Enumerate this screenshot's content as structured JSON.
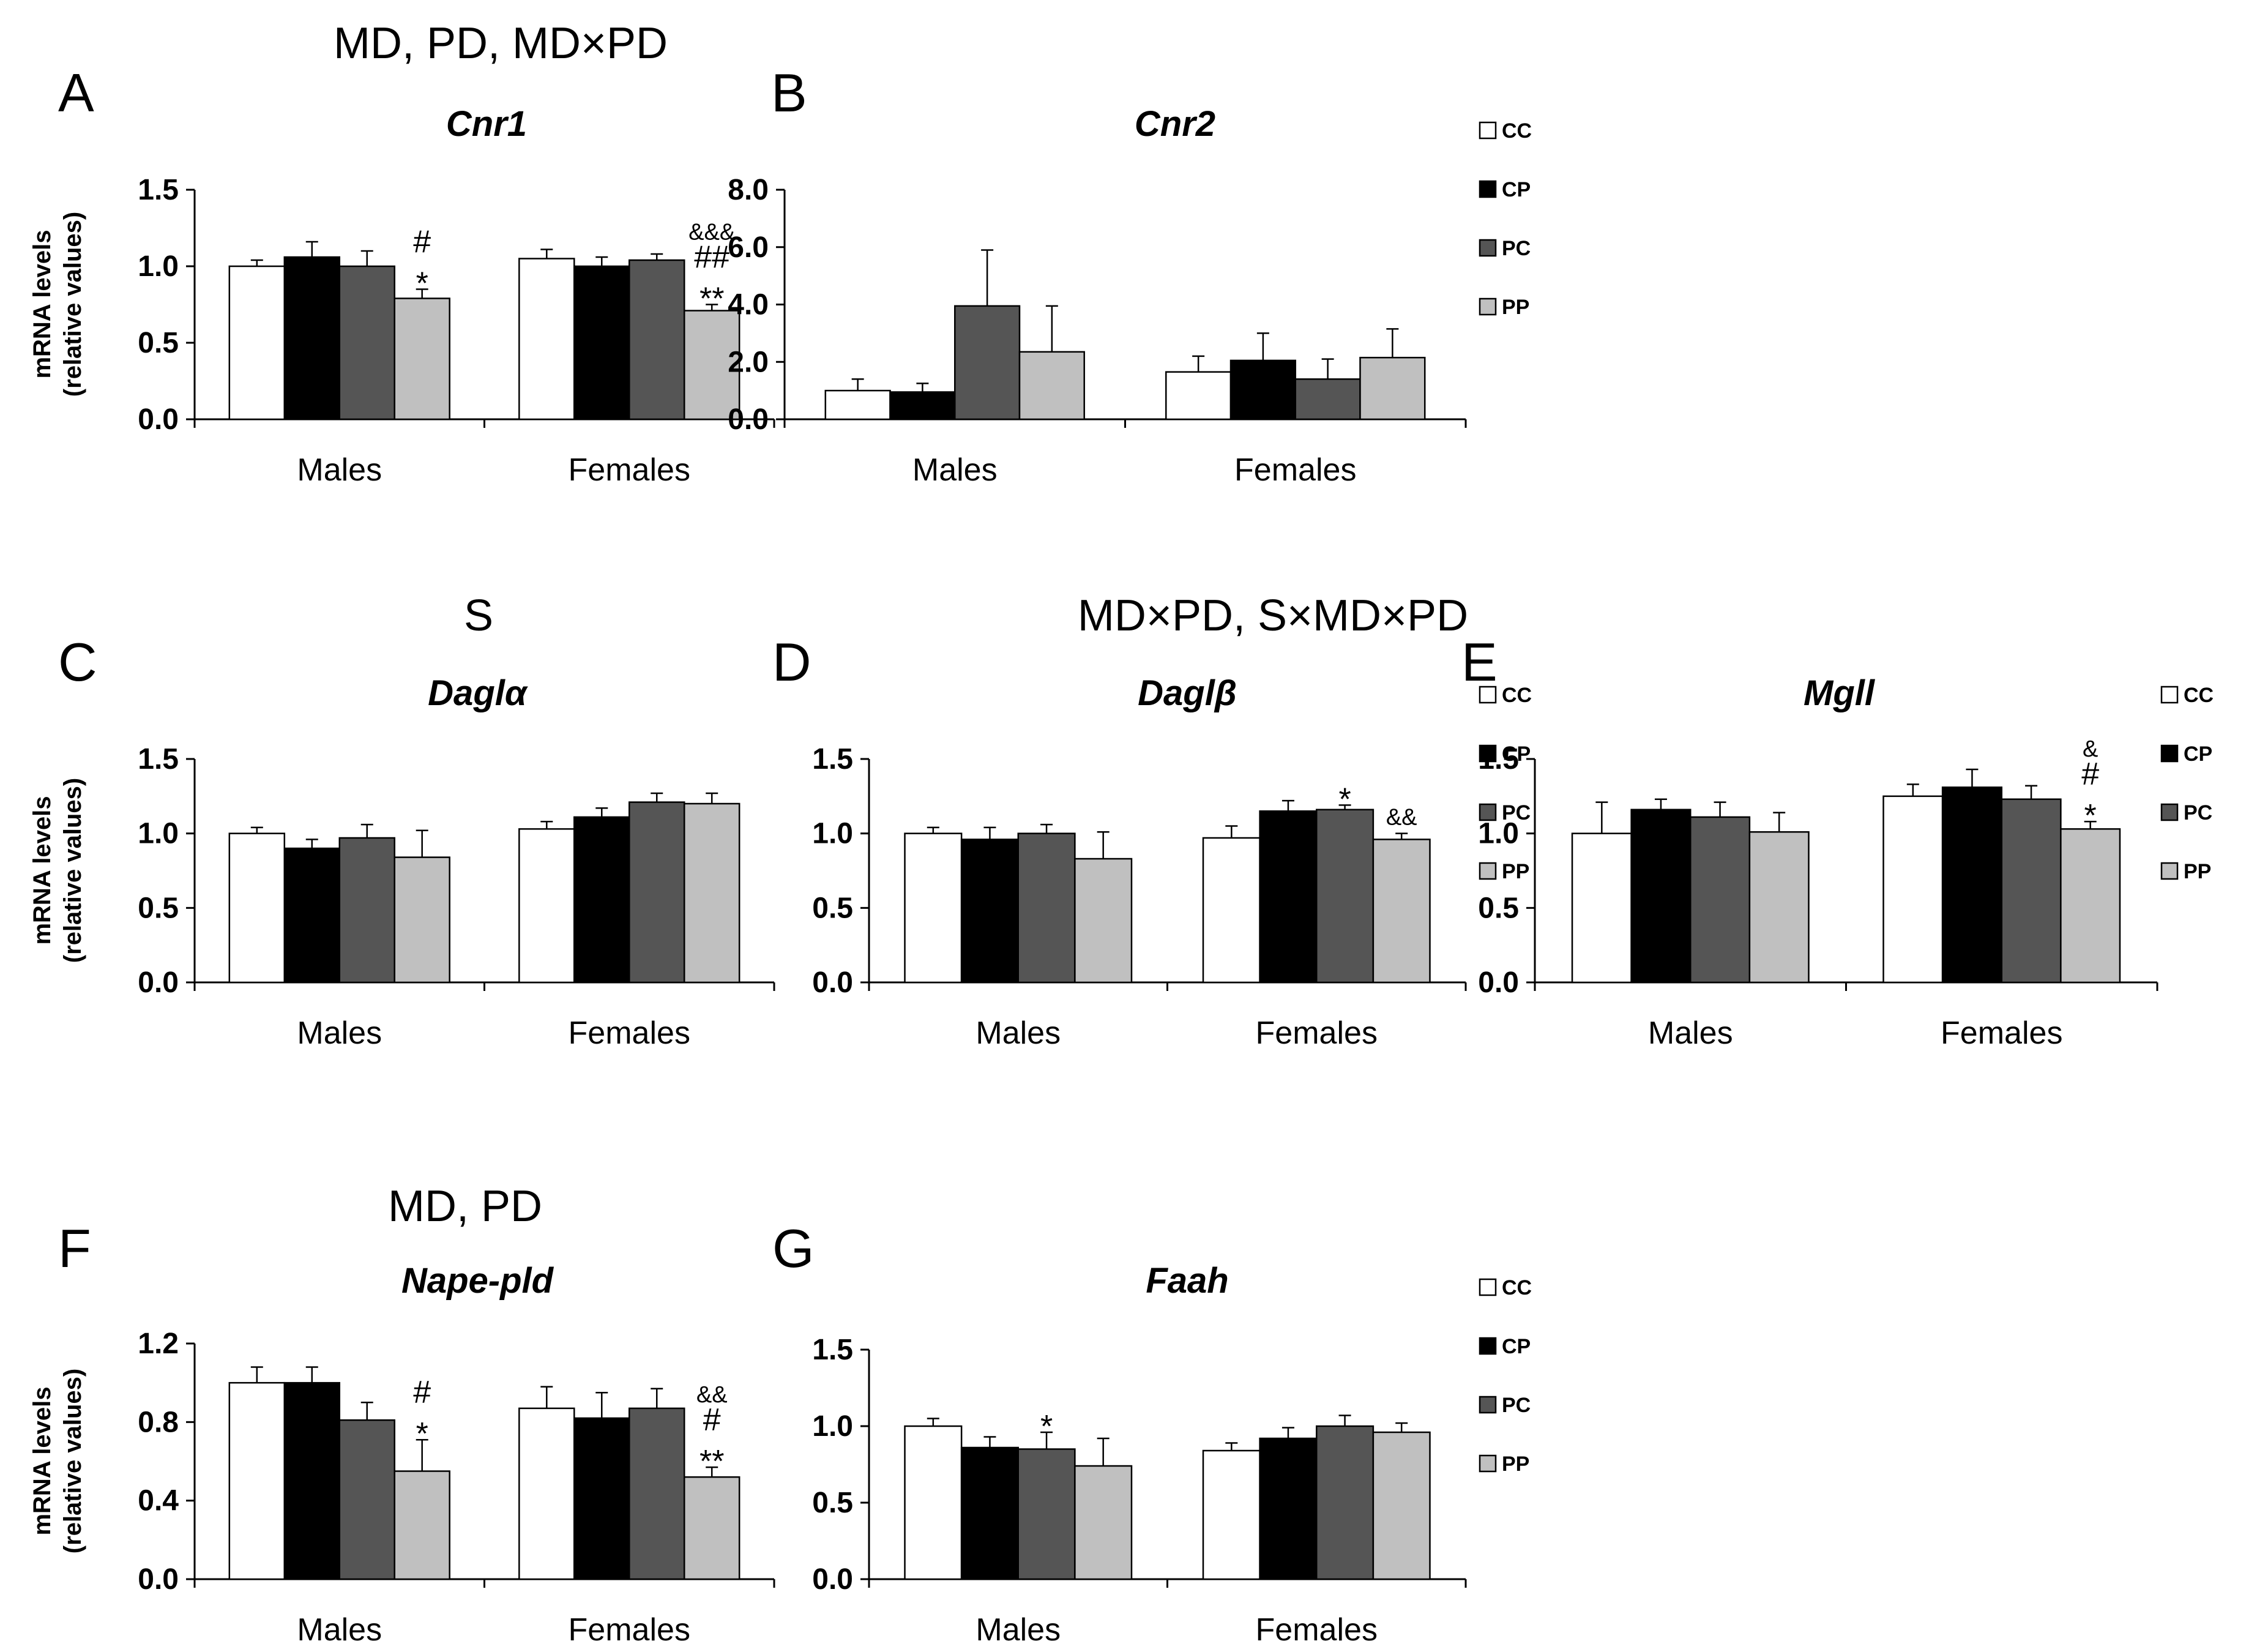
{
  "y_axis_label_line1": "mRNA levels",
  "y_axis_label_line2": "(relative values)",
  "legend": [
    {
      "label": "CC",
      "color": "#ffffff"
    },
    {
      "label": "CP",
      "color": "#000000"
    },
    {
      "label": "PC",
      "color": "#555555"
    },
    {
      "label": "PP",
      "color": "#c0c0c0"
    }
  ],
  "chart_data": [
    {
      "panel": "A",
      "effects": "MD, PD, MD×PD",
      "title": "Cnr1",
      "type": "bar",
      "categories": [
        "Males",
        "Females"
      ],
      "ylim": [
        0,
        1.5
      ],
      "yticks": [
        "0.0",
        "0.5",
        "1.0",
        "1.5"
      ],
      "series": [
        {
          "name": "CC",
          "values": [
            1.0,
            1.05
          ],
          "errors": [
            0.04,
            0.06
          ]
        },
        {
          "name": "CP",
          "values": [
            1.06,
            1.0
          ],
          "errors": [
            0.1,
            0.06
          ]
        },
        {
          "name": "PC",
          "values": [
            1.0,
            1.04
          ],
          "errors": [
            0.1,
            0.04
          ]
        },
        {
          "name": "PP",
          "values": [
            0.79,
            0.71
          ],
          "errors": [
            0.06,
            0.04
          ]
        }
      ],
      "annotations": [
        {
          "category": 0,
          "series": 3,
          "lines": [
            "#",
            "*"
          ]
        },
        {
          "category": 1,
          "series": 3,
          "lines": [
            "&&&",
            "##",
            "**"
          ]
        }
      ]
    },
    {
      "panel": "B",
      "effects": "",
      "title": "Cnr2",
      "type": "bar",
      "categories": [
        "Males",
        "Females"
      ],
      "ylim": [
        0,
        8
      ],
      "yticks": [
        "0.0",
        "2.0",
        "4.0",
        "6.0",
        "8.0"
      ],
      "series": [
        {
          "name": "CC",
          "values": [
            1.0,
            1.65
          ],
          "errors": [
            0.4,
            0.55
          ]
        },
        {
          "name": "CP",
          "values": [
            0.95,
            2.05
          ],
          "errors": [
            0.3,
            0.95
          ]
        },
        {
          "name": "PC",
          "values": [
            3.95,
            1.4
          ],
          "errors": [
            1.95,
            0.7
          ]
        },
        {
          "name": "PP",
          "values": [
            2.35,
            2.15
          ],
          "errors": [
            1.6,
            1.0
          ]
        }
      ],
      "annotations": []
    },
    {
      "panel": "C",
      "effects": "S",
      "title": "Daglα",
      "type": "bar",
      "categories": [
        "Males",
        "Females"
      ],
      "ylim": [
        0,
        1.5
      ],
      "yticks": [
        "0.0",
        "0.5",
        "1.0",
        "1.5"
      ],
      "series": [
        {
          "name": "CC",
          "values": [
            1.0,
            1.03
          ],
          "errors": [
            0.04,
            0.05
          ]
        },
        {
          "name": "CP",
          "values": [
            0.9,
            1.11
          ],
          "errors": [
            0.06,
            0.06
          ]
        },
        {
          "name": "PC",
          "values": [
            0.97,
            1.21
          ],
          "errors": [
            0.09,
            0.06
          ]
        },
        {
          "name": "PP",
          "values": [
            0.84,
            1.2
          ],
          "errors": [
            0.18,
            0.07
          ]
        }
      ],
      "annotations": []
    },
    {
      "panel": "D",
      "effects": "MD×PD, S×MD×PD",
      "title": "Daglβ",
      "type": "bar",
      "categories": [
        "Males",
        "Females"
      ],
      "ylim": [
        0,
        1.5
      ],
      "yticks": [
        "0.0",
        "0.5",
        "1.0",
        "1.5"
      ],
      "series": [
        {
          "name": "CC",
          "values": [
            1.0,
            0.97
          ],
          "errors": [
            0.04,
            0.08
          ]
        },
        {
          "name": "CP",
          "values": [
            0.96,
            1.15
          ],
          "errors": [
            0.08,
            0.07
          ]
        },
        {
          "name": "PC",
          "values": [
            1.0,
            1.16
          ],
          "errors": [
            0.06,
            0.03
          ]
        },
        {
          "name": "PP",
          "values": [
            0.83,
            0.96
          ],
          "errors": [
            0.18,
            0.04
          ]
        }
      ],
      "annotations": [
        {
          "category": 1,
          "series": 2,
          "lines": [
            "*"
          ]
        },
        {
          "category": 1,
          "series": 3,
          "lines": [
            "&&"
          ]
        }
      ]
    },
    {
      "panel": "E",
      "effects": "",
      "title": "Mgll",
      "type": "bar",
      "categories": [
        "Males",
        "Females"
      ],
      "ylim": [
        0,
        1.5
      ],
      "yticks": [
        "0.0",
        "0.5",
        "1.0",
        "1.5"
      ],
      "series": [
        {
          "name": "CC",
          "values": [
            1.0,
            1.25
          ],
          "errors": [
            0.21,
            0.08
          ]
        },
        {
          "name": "CP",
          "values": [
            1.16,
            1.31
          ],
          "errors": [
            0.07,
            0.12
          ]
        },
        {
          "name": "PC",
          "values": [
            1.11,
            1.23
          ],
          "errors": [
            0.1,
            0.09
          ]
        },
        {
          "name": "PP",
          "values": [
            1.01,
            1.03
          ],
          "errors": [
            0.13,
            0.05
          ]
        }
      ],
      "annotations": [
        {
          "category": 1,
          "series": 3,
          "lines": [
            "&",
            "#",
            "*"
          ]
        }
      ]
    },
    {
      "panel": "F",
      "effects": "MD, PD",
      "title": "Nape-pld",
      "type": "bar",
      "categories": [
        "Males",
        "Females"
      ],
      "ylim": [
        0,
        1.2
      ],
      "yticks": [
        "0.0",
        "0.4",
        "0.8",
        "1.2"
      ],
      "series": [
        {
          "name": "CC",
          "values": [
            1.0,
            0.87
          ],
          "errors": [
            0.08,
            0.11
          ]
        },
        {
          "name": "CP",
          "values": [
            1.0,
            0.82
          ],
          "errors": [
            0.08,
            0.13
          ]
        },
        {
          "name": "PC",
          "values": [
            0.81,
            0.87
          ],
          "errors": [
            0.09,
            0.1
          ]
        },
        {
          "name": "PP",
          "values": [
            0.55,
            0.52
          ],
          "errors": [
            0.16,
            0.05
          ]
        }
      ],
      "annotations": [
        {
          "category": 0,
          "series": 3,
          "lines": [
            "#",
            "*"
          ]
        },
        {
          "category": 1,
          "series": 3,
          "lines": [
            "&&",
            "#",
            "**"
          ]
        }
      ]
    },
    {
      "panel": "G",
      "effects": "",
      "title": "Faah",
      "type": "bar",
      "categories": [
        "Males",
        "Females"
      ],
      "ylim": [
        0,
        1.5
      ],
      "yticks": [
        "0.0",
        "0.5",
        "1.0",
        "1.5"
      ],
      "series": [
        {
          "name": "CC",
          "values": [
            1.0,
            0.84
          ],
          "errors": [
            0.05,
            0.05
          ]
        },
        {
          "name": "CP",
          "values": [
            0.86,
            0.92
          ],
          "errors": [
            0.07,
            0.07
          ]
        },
        {
          "name": "PC",
          "values": [
            0.85,
            1.0
          ],
          "errors": [
            0.11,
            0.07
          ]
        },
        {
          "name": "PP",
          "values": [
            0.74,
            0.96
          ],
          "errors": [
            0.18,
            0.06
          ]
        }
      ],
      "annotations": [
        {
          "category": 0,
          "series": 2,
          "lines": [
            "*"
          ]
        }
      ]
    }
  ]
}
